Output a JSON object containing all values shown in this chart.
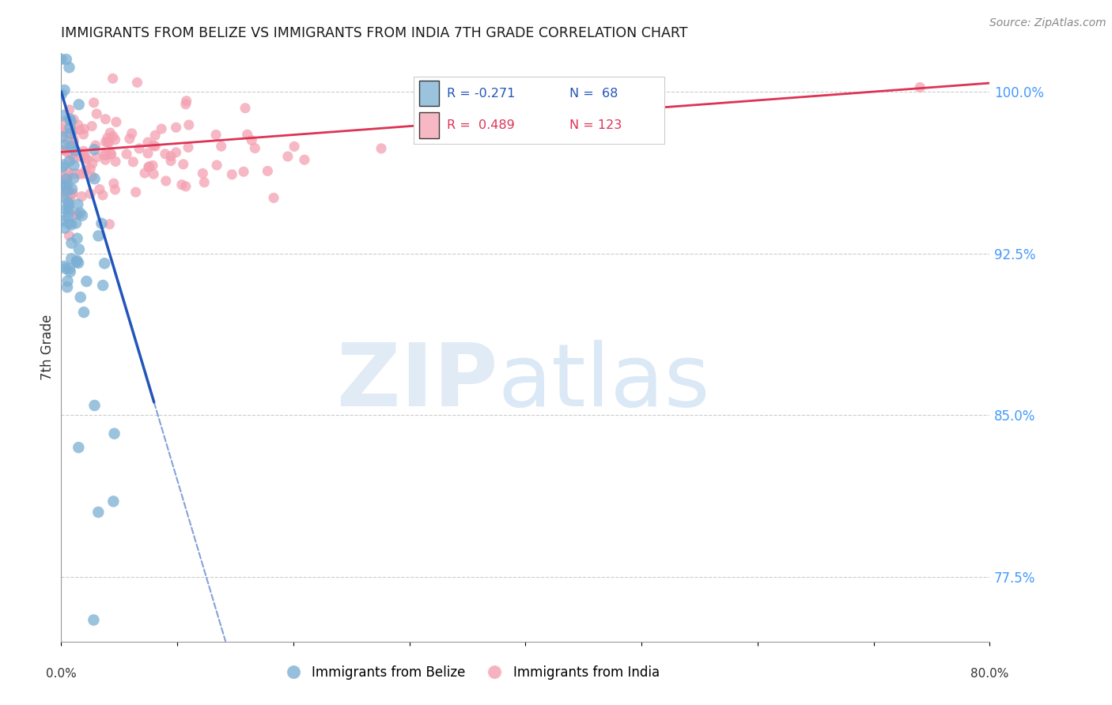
{
  "title": "IMMIGRANTS FROM BELIZE VS IMMIGRANTS FROM INDIA 7TH GRADE CORRELATION CHART",
  "source": "Source: ZipAtlas.com",
  "ylabel": "7th Grade",
  "legend_belize": "Immigrants from Belize",
  "legend_india": "Immigrants from India",
  "R_belize": -0.271,
  "N_belize": 68,
  "R_india": 0.489,
  "N_india": 123,
  "belize_color": "#7BAFD4",
  "india_color": "#F4A0B0",
  "belize_line_color": "#2255BB",
  "india_line_color": "#DD3355",
  "xmin": 0.0,
  "xmax": 80.0,
  "ymin": 74.5,
  "ymax": 101.8,
  "yticks_right": [
    100.0,
    92.5,
    85.0,
    77.5
  ],
  "grid_color": "#CCCCCC",
  "watermark_zip_color": "#C8DCF0",
  "watermark_atlas_color": "#B0CCEC"
}
